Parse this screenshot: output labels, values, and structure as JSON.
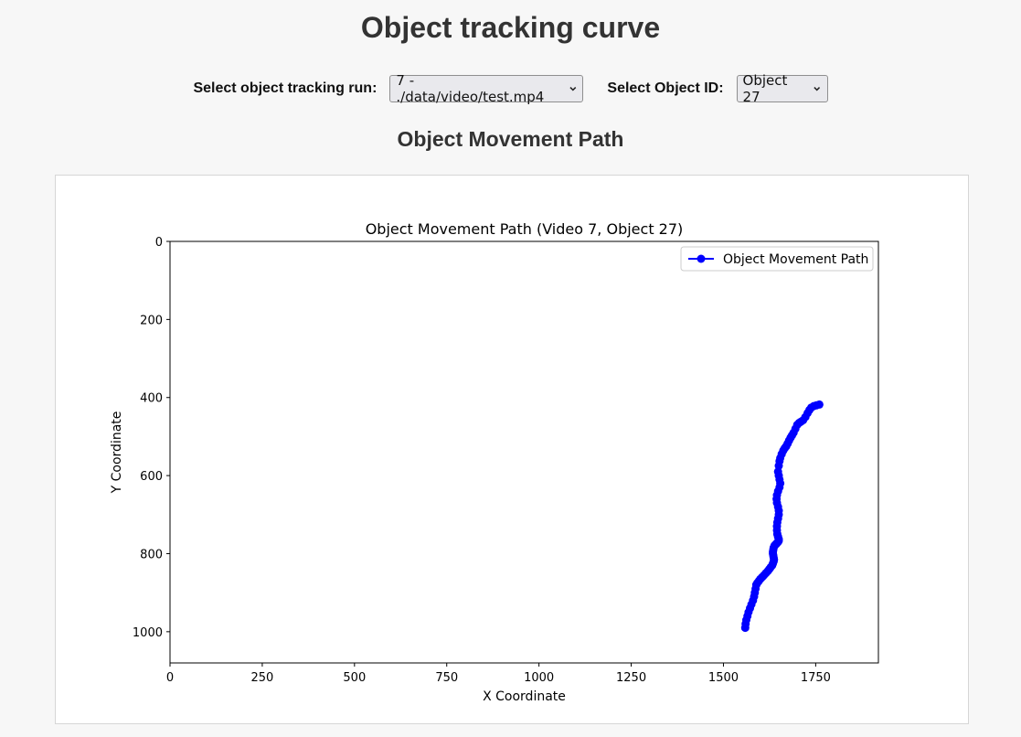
{
  "page": {
    "title": "Object tracking curve"
  },
  "controls": {
    "run_label": "Select object tracking run:",
    "run_value": "7 - ./data/video/test.mp4",
    "object_label": "Select Object ID:",
    "object_value": "Object 27"
  },
  "section": {
    "title": "Object Movement Path"
  },
  "chart_data": {
    "type": "line",
    "title": "Object Movement Path (Video 7, Object 27)",
    "xlabel": "X Coordinate",
    "ylabel": "Y Coordinate",
    "xlim": [
      0,
      1920
    ],
    "ylim": [
      1080,
      0
    ],
    "y_inverted": true,
    "xticks": [
      0,
      250,
      500,
      750,
      1000,
      1250,
      1500,
      1750
    ],
    "yticks": [
      0,
      200,
      400,
      600,
      800,
      1000
    ],
    "legend_position": "top-right",
    "grid": false,
    "series": [
      {
        "name": "Object Movement Path",
        "color": "#0000ff",
        "marker": "circle",
        "x": [
          1760,
          1752,
          1745,
          1738,
          1733,
          1728,
          1722,
          1716,
          1710,
          1705,
          1700,
          1695,
          1690,
          1686,
          1682,
          1678,
          1674,
          1670,
          1666,
          1662,
          1658,
          1654,
          1652,
          1650,
          1648,
          1650,
          1652,
          1654,
          1652,
          1648,
          1645,
          1644,
          1645,
          1648,
          1650,
          1650,
          1648,
          1646,
          1645,
          1645,
          1646,
          1648,
          1650,
          1650,
          1648,
          1646,
          1644,
          1642,
          1640,
          1638,
          1636,
          1635,
          1634,
          1634,
          1635,
          1636,
          1637,
          1636,
          1634,
          1632,
          1628,
          1624,
          1620,
          1615,
          1610,
          1605,
          1600,
          1596,
          1592,
          1589,
          1587,
          1585,
          1583,
          1580,
          1576,
          1572,
          1568,
          1565,
          1562,
          1560,
          1559
        ],
        "y": [
          418,
          420,
          422,
          426,
          432,
          440,
          450,
          458,
          462,
          465,
          470,
          480,
          490,
          497,
          503,
          510,
          518,
          525,
          530,
          536,
          545,
          555,
          563,
          575,
          590,
          600,
          610,
          620,
          630,
          640,
          650,
          660,
          670,
          680,
          690,
          700,
          710,
          720,
          730,
          740,
          750,
          757,
          763,
          767,
          770,
          772,
          774,
          776,
          778,
          780,
          785,
          790,
          795,
          800,
          805,
          810,
          815,
          820,
          825,
          830,
          835,
          840,
          845,
          850,
          855,
          860,
          865,
          870,
          875,
          880,
          890,
          900,
          910,
          920,
          930,
          940,
          950,
          960,
          970,
          980,
          990
        ]
      }
    ]
  }
}
